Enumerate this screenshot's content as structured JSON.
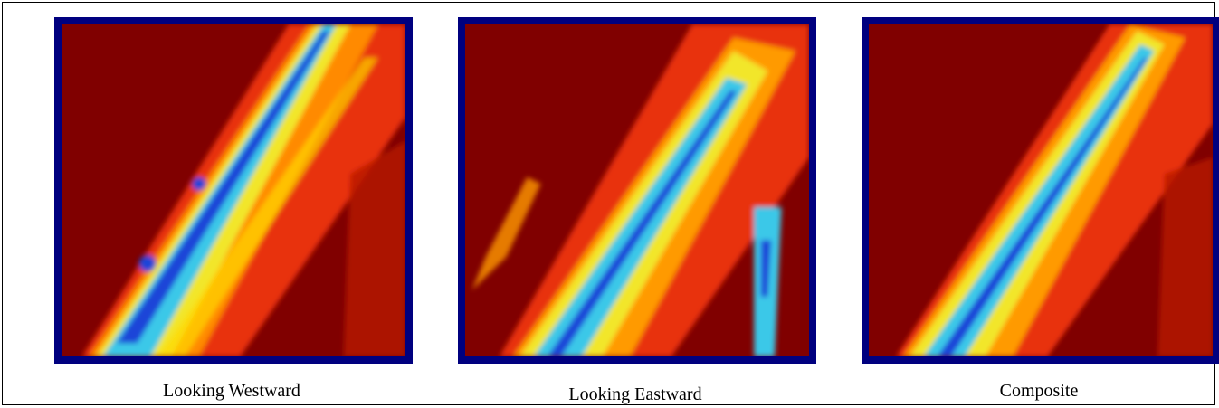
{
  "panels": [
    {
      "caption": "Looking Westward"
    },
    {
      "caption": "Looking Eastward"
    },
    {
      "caption": "Composite"
    }
  ]
}
